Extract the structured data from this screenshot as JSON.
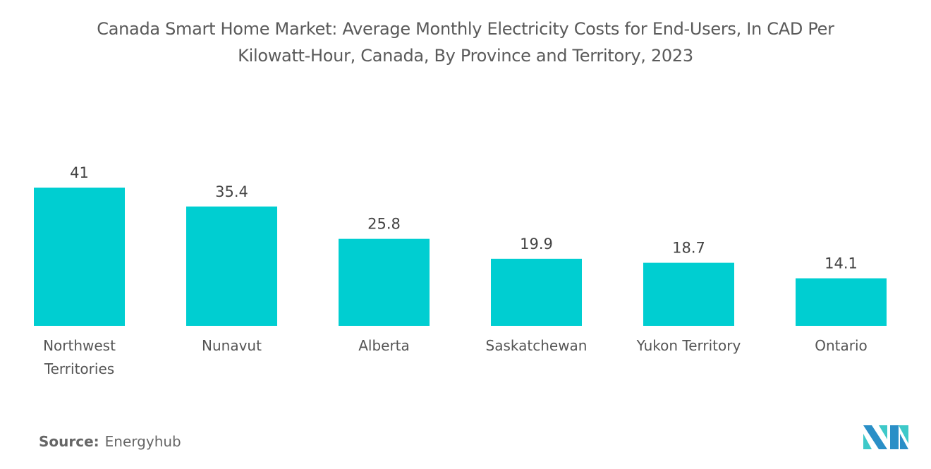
{
  "chart_data": {
    "type": "bar",
    "title": "Canada Smart Home Market: Average Monthly Electricity Costs for End-Users, In CAD Per Kilowatt-Hour, Canada, By Province and Territory, 2023",
    "title_lines": [
      "Canada Smart Home Market: Average Monthly Electricity Costs for End-Users, In CAD Per",
      "Kilowatt-Hour, Canada, By Province and Territory, 2023"
    ],
    "categories": [
      "Northwest Territories",
      "Nunavut",
      "Alberta",
      "Saskatchewan",
      "Yukon Territory",
      "Ontario"
    ],
    "category_lines": [
      [
        "Northwest",
        "Territories"
      ],
      [
        "Nunavut"
      ],
      [
        "Alberta"
      ],
      [
        "Saskatchewan"
      ],
      [
        "Yukon Territory"
      ],
      [
        "Ontario"
      ]
    ],
    "values": [
      41,
      35.4,
      25.8,
      19.9,
      18.7,
      14.1
    ],
    "value_labels": [
      "41",
      "35.4",
      "25.8",
      "19.9",
      "18.7",
      "14.1"
    ],
    "xlabel": "",
    "ylabel": "",
    "ylim": [
      0,
      41
    ],
    "grid": false,
    "legend": "none",
    "bar_color": "#00ced1"
  },
  "source": {
    "label": "Source:",
    "text": "Energyhub"
  },
  "logo": {
    "name": "Mordor Intelligence logo",
    "colors": [
      "#2a8fc7",
      "#3ec9c9"
    ]
  }
}
